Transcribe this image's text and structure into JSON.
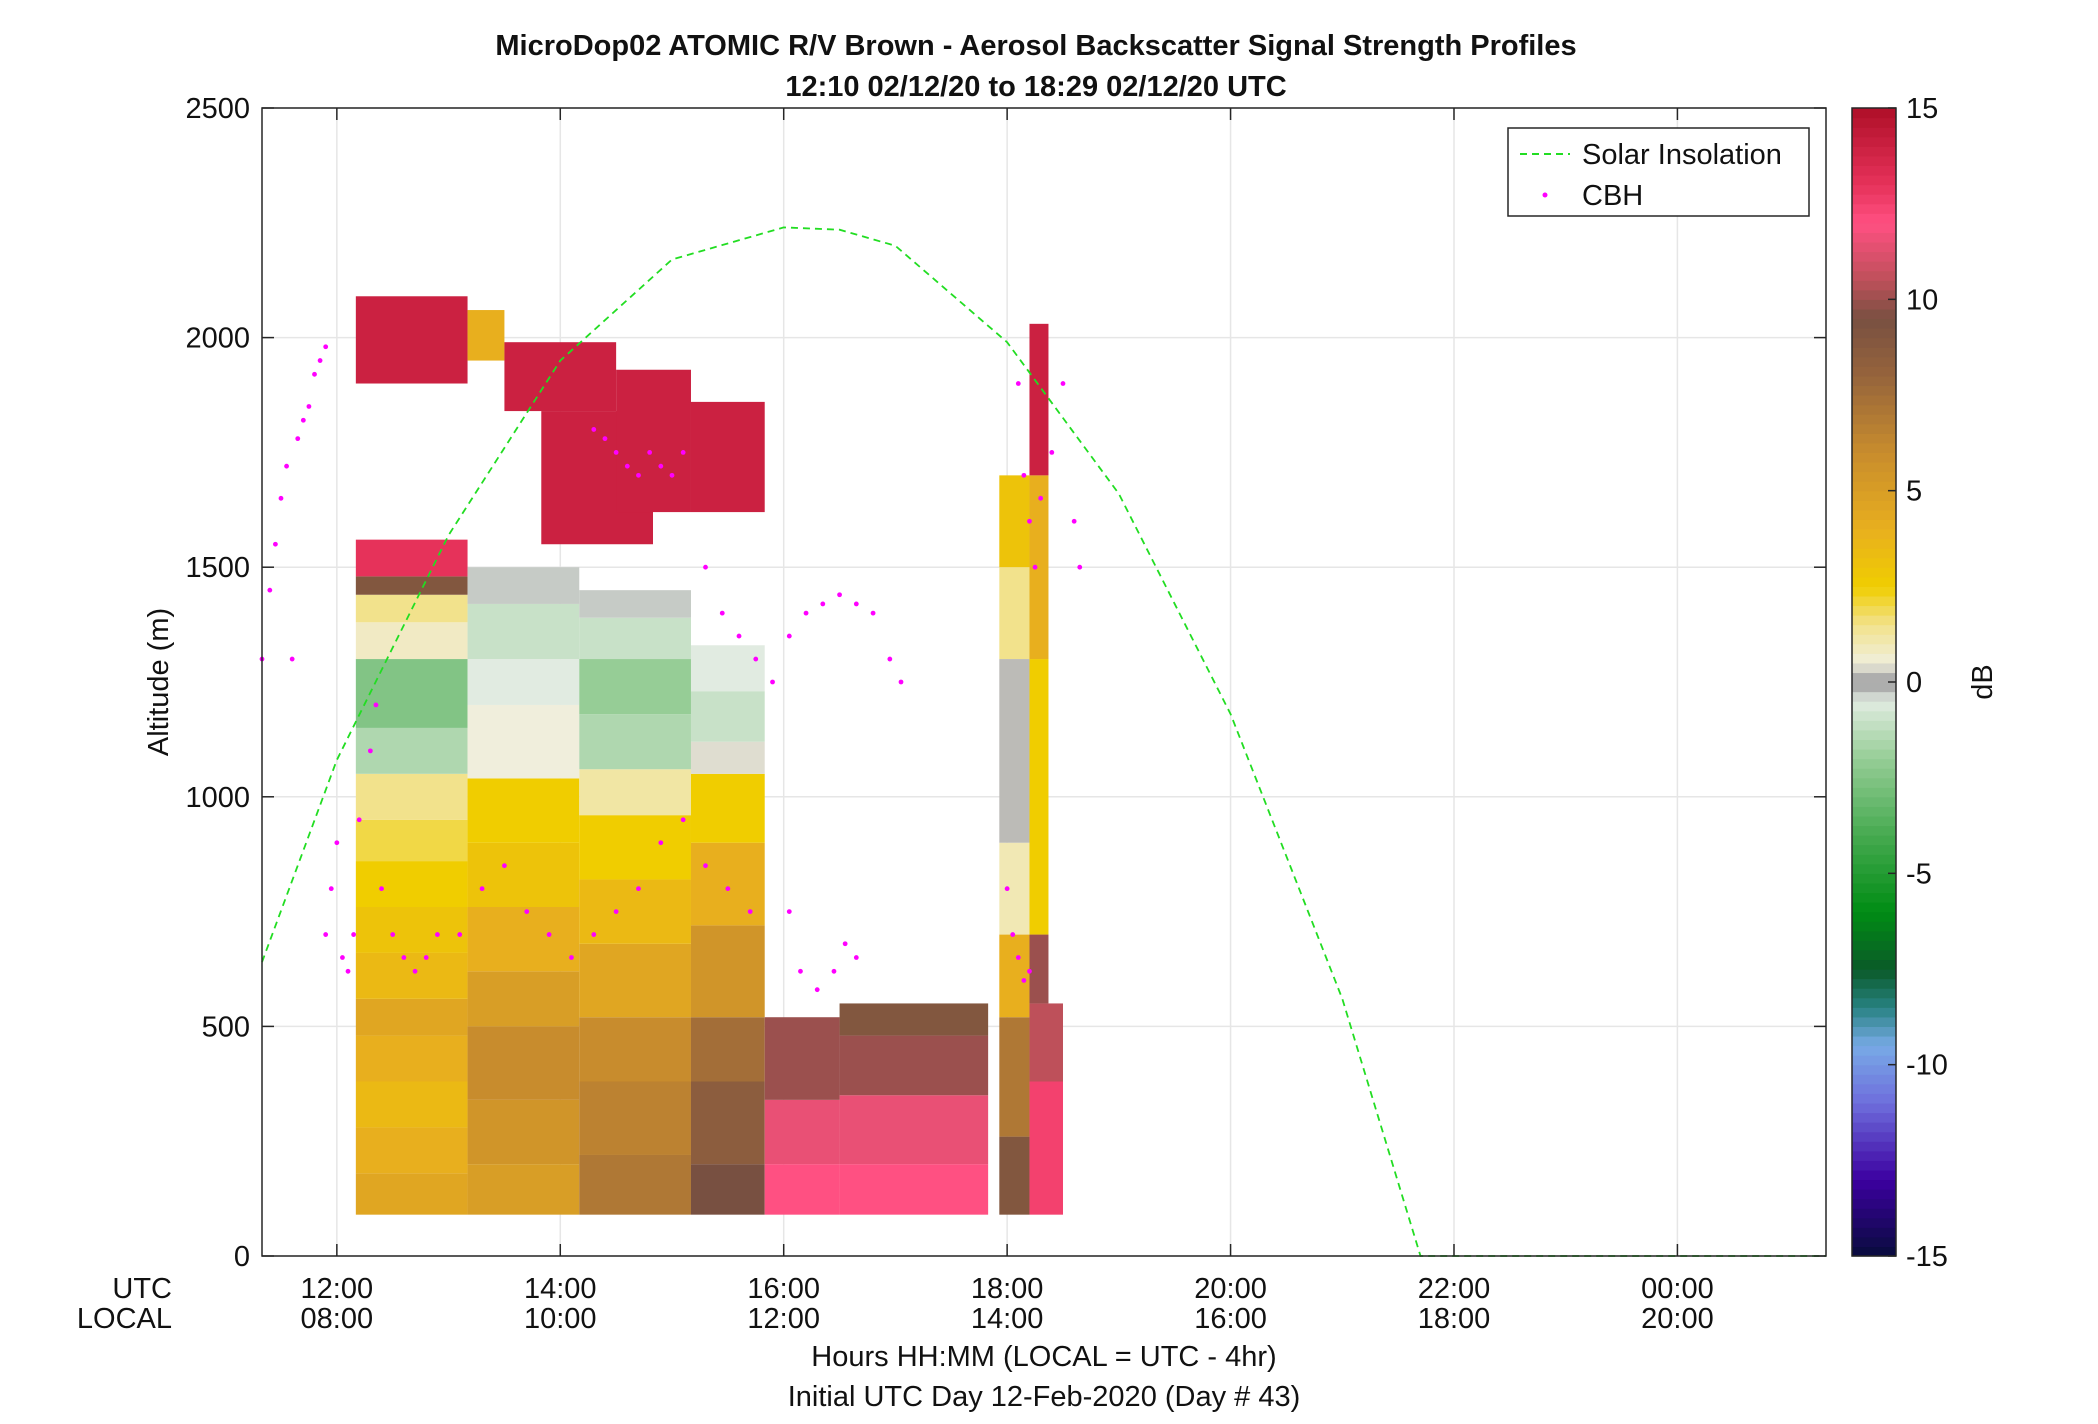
{
  "chart_data": {
    "type": "heatmap",
    "title": "MicroDop02 ATOMIC R/V Brown - Aerosol Backscatter Signal Strength Profiles",
    "subtitle": "12:10 02/12/20 to 18:29 02/12/20  UTC",
    "ylabel": "Altitude (m)",
    "xlabel": "Hours HH:MM  (LOCAL = UTC - 4hr)",
    "footnote": "Initial UTC Day 12-Feb-2020 (Day # 43)",
    "xlim_hours_utc": [
      11.33,
      25.33
    ],
    "ylim": [
      0,
      2500
    ],
    "yticks": [
      0,
      500,
      1000,
      1500,
      2000,
      2500
    ],
    "xticks_hours": [
      12,
      14,
      16,
      18,
      20,
      22,
      24
    ],
    "xtick_row_labels": [
      "UTC",
      "LOCAL"
    ],
    "xtick_utc": [
      "12:00",
      "14:00",
      "16:00",
      "18:00",
      "20:00",
      "22:00",
      "00:00"
    ],
    "xtick_local": [
      "08:00",
      "10:00",
      "12:00",
      "14:00",
      "16:00",
      "18:00",
      "20:00"
    ],
    "grid": true,
    "legend_position": "top-right",
    "legend": [
      {
        "name": "Solar Insolation",
        "style": "dashed-line",
        "color": "#22dd22"
      },
      {
        "name": "CBH",
        "style": "dots",
        "color": "#ff00ff"
      }
    ],
    "colorbar": {
      "label": "dB",
      "range": [
        -15,
        15
      ],
      "ticks": [
        15,
        10,
        5,
        0,
        -5,
        -10,
        -15
      ],
      "tick_labels": [
        "15",
        "10",
        "5",
        "0",
        "-5",
        "-10",
        "-15"
      ]
    },
    "solar_insolation": {
      "color": "#22dd22",
      "x_hours": [
        11.33,
        12.0,
        13.0,
        14.0,
        15.0,
        16.0,
        16.5,
        17.0,
        18.0,
        19.0,
        20.0,
        21.0,
        21.7,
        22.0,
        25.33
      ],
      "y_m": [
        640,
        1080,
        1570,
        1950,
        2170,
        2240,
        2235,
        2200,
        1990,
        1660,
        1180,
        560,
        0,
        0,
        0
      ]
    },
    "backscatter_segments": [
      {
        "x0": 12.17,
        "x1": 13.17,
        "levels": [
          [
            90,
            180,
            4.5
          ],
          [
            180,
            280,
            4
          ],
          [
            280,
            380,
            3.5
          ],
          [
            380,
            480,
            4
          ],
          [
            480,
            560,
            4.5
          ],
          [
            560,
            660,
            3.5
          ],
          [
            660,
            760,
            3
          ],
          [
            760,
            860,
            2.5
          ],
          [
            860,
            950,
            2
          ],
          [
            950,
            1050,
            1.5
          ],
          [
            1050,
            1150,
            -1.5
          ],
          [
            1150,
            1300,
            -2.5
          ],
          [
            1300,
            1380,
            0.8
          ],
          [
            1380,
            1440,
            1.5
          ],
          [
            1440,
            1480,
            9
          ],
          [
            1480,
            1560,
            13
          ]
        ]
      },
      {
        "x0": 13.17,
        "x1": 14.17,
        "levels": [
          [
            90,
            200,
            5
          ],
          [
            200,
            340,
            5.5
          ],
          [
            340,
            500,
            6
          ],
          [
            500,
            620,
            5
          ],
          [
            620,
            760,
            4
          ],
          [
            760,
            900,
            3
          ],
          [
            900,
            1040,
            2.5
          ],
          [
            1040,
            1200,
            0.5
          ],
          [
            1200,
            1300,
            -0.5
          ],
          [
            1300,
            1420,
            -1
          ],
          [
            1420,
            1500,
            -0.3
          ]
        ]
      },
      {
        "x0": 14.17,
        "x1": 15.17,
        "levels": [
          [
            90,
            220,
            7
          ],
          [
            220,
            380,
            6.5
          ],
          [
            380,
            520,
            6
          ],
          [
            520,
            680,
            4.5
          ],
          [
            680,
            820,
            3.5
          ],
          [
            820,
            960,
            2.5
          ],
          [
            960,
            1060,
            1.2
          ],
          [
            1060,
            1180,
            -1.5
          ],
          [
            1180,
            1300,
            -2
          ],
          [
            1300,
            1390,
            -1
          ],
          [
            1390,
            1450,
            -0.3
          ]
        ]
      },
      {
        "x0": 15.17,
        "x1": 15.83,
        "levels": [
          [
            90,
            200,
            9.5
          ],
          [
            200,
            380,
            8.5
          ],
          [
            380,
            520,
            7.5
          ],
          [
            520,
            720,
            5.5
          ],
          [
            720,
            900,
            4
          ],
          [
            900,
            1050,
            2.5
          ],
          [
            1050,
            1120,
            0.4
          ],
          [
            1120,
            1230,
            -1
          ],
          [
            1230,
            1330,
            -0.5
          ]
        ]
      },
      {
        "x0": 15.83,
        "x1": 16.5,
        "levels": [
          [
            90,
            200,
            12
          ],
          [
            200,
            340,
            11.5
          ],
          [
            340,
            520,
            10
          ]
        ]
      },
      {
        "x0": 16.5,
        "x1": 17.83,
        "levels": [
          [
            90,
            200,
            12
          ],
          [
            200,
            350,
            11.5
          ],
          [
            350,
            480,
            10
          ],
          [
            480,
            550,
            9
          ]
        ]
      },
      {
        "x0": 17.93,
        "x1": 18.2,
        "levels": [
          [
            90,
            260,
            9
          ],
          [
            260,
            520,
            7
          ],
          [
            520,
            700,
            4
          ],
          [
            700,
            900,
            1
          ],
          [
            900,
            1300,
            0.2
          ],
          [
            1300,
            1500,
            1.5
          ],
          [
            1500,
            1700,
            3
          ]
        ]
      },
      {
        "x0": 18.2,
        "x1": 18.5,
        "levels": [
          [
            90,
            380,
            12.5
          ],
          [
            380,
            550,
            10.5
          ]
        ]
      },
      {
        "x0": 18.2,
        "x1": 18.37,
        "levels": [
          [
            550,
            700,
            10
          ],
          [
            700,
            1300,
            2.5
          ],
          [
            1300,
            1700,
            4
          ],
          [
            1700,
            2030,
            14
          ]
        ]
      }
    ],
    "upper_layer_blocks": [
      {
        "x0": 12.17,
        "x1": 13.17,
        "y0": 1900,
        "y1": 2090,
        "value": 14
      },
      {
        "x0": 13.17,
        "x1": 13.5,
        "y0": 1950,
        "y1": 2060,
        "value": 4
      },
      {
        "x0": 13.5,
        "x1": 14.5,
        "y0": 1840,
        "y1": 1990,
        "value": 14
      },
      {
        "x0": 13.83,
        "x1": 14.83,
        "y0": 1550,
        "y1": 1840,
        "value": 14
      },
      {
        "x0": 14.5,
        "x1": 15.17,
        "y0": 1620,
        "y1": 1930,
        "value": 14
      },
      {
        "x0": 15.17,
        "x1": 15.83,
        "y0": 1620,
        "y1": 1860,
        "value": 14
      }
    ],
    "cbh_points_hours_m": [
      [
        11.33,
        1300
      ],
      [
        11.4,
        1450
      ],
      [
        11.45,
        1550
      ],
      [
        11.5,
        1650
      ],
      [
        11.55,
        1720
      ],
      [
        11.6,
        1300
      ],
      [
        11.65,
        1780
      ],
      [
        11.7,
        1820
      ],
      [
        11.75,
        1850
      ],
      [
        11.8,
        1920
      ],
      [
        11.85,
        1950
      ],
      [
        11.9,
        1980
      ],
      [
        11.9,
        700
      ],
      [
        11.95,
        800
      ],
      [
        12.0,
        900
      ],
      [
        12.05,
        650
      ],
      [
        12.1,
        620
      ],
      [
        12.15,
        700
      ],
      [
        12.2,
        950
      ],
      [
        12.3,
        1100
      ],
      [
        12.35,
        1200
      ],
      [
        12.4,
        800
      ],
      [
        12.5,
        700
      ],
      [
        12.6,
        650
      ],
      [
        12.7,
        620
      ],
      [
        12.8,
        650
      ],
      [
        12.9,
        700
      ],
      [
        13.1,
        700
      ],
      [
        13.3,
        800
      ],
      [
        13.5,
        850
      ],
      [
        13.7,
        750
      ],
      [
        13.9,
        700
      ],
      [
        14.1,
        650
      ],
      [
        14.3,
        700
      ],
      [
        14.5,
        750
      ],
      [
        14.7,
        800
      ],
      [
        14.9,
        900
      ],
      [
        15.1,
        950
      ],
      [
        15.3,
        850
      ],
      [
        15.5,
        800
      ],
      [
        15.7,
        750
      ],
      [
        14.3,
        1800
      ],
      [
        14.4,
        1780
      ],
      [
        14.5,
        1750
      ],
      [
        14.6,
        1720
      ],
      [
        14.7,
        1700
      ],
      [
        14.8,
        1750
      ],
      [
        14.9,
        1720
      ],
      [
        15.0,
        1700
      ],
      [
        15.1,
        1750
      ],
      [
        15.3,
        1500
      ],
      [
        15.45,
        1400
      ],
      [
        15.6,
        1350
      ],
      [
        15.75,
        1300
      ],
      [
        15.9,
        1250
      ],
      [
        16.05,
        1350
      ],
      [
        16.2,
        1400
      ],
      [
        16.35,
        1420
      ],
      [
        16.5,
        1440
      ],
      [
        16.65,
        1420
      ],
      [
        16.8,
        1400
      ],
      [
        16.95,
        1300
      ],
      [
        17.05,
        1250
      ],
      [
        16.05,
        750
      ],
      [
        16.15,
        620
      ],
      [
        16.3,
        580
      ],
      [
        16.45,
        620
      ],
      [
        16.55,
        680
      ],
      [
        16.65,
        650
      ],
      [
        18.1,
        1900
      ],
      [
        18.15,
        1700
      ],
      [
        18.2,
        1600
      ],
      [
        18.25,
        1500
      ],
      [
        18.3,
        1650
      ],
      [
        18.4,
        1750
      ],
      [
        18.5,
        1900
      ],
      [
        18.6,
        1600
      ],
      [
        18.65,
        1500
      ],
      [
        18.0,
        800
      ],
      [
        18.05,
        700
      ],
      [
        18.1,
        650
      ],
      [
        18.15,
        600
      ],
      [
        18.2,
        620
      ]
    ]
  }
}
